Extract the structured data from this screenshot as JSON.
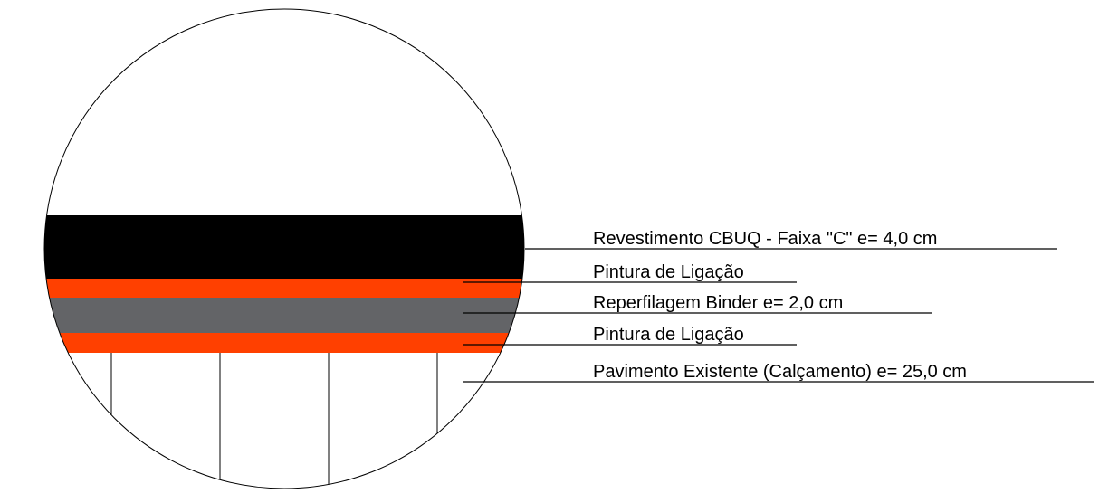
{
  "layers": [
    {
      "label": "Revestimento CBUQ - Faixa \"C\" e= 4,0 cm"
    },
    {
      "label": "Pintura de Ligação"
    },
    {
      "label": "Reperfilagem Binder e= 2,0 cm"
    },
    {
      "label": "Pintura de Ligação"
    },
    {
      "label": "Pavimento Existente (Calçamento) e= 25,0 cm"
    }
  ]
}
